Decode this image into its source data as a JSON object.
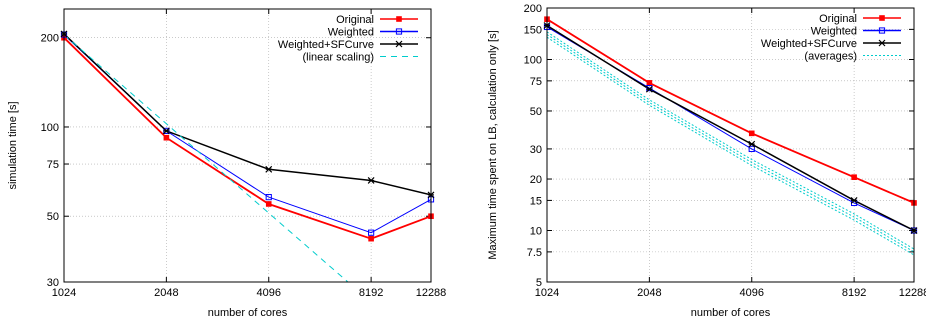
{
  "chart_data": [
    {
      "type": "line",
      "xlabel": "number of cores",
      "ylabel": "simulation time [s]",
      "x_scale": "log2",
      "y_scale": "log",
      "xlim": [
        1024,
        12288
      ],
      "ylim": [
        30,
        250
      ],
      "xticks": [
        1024,
        2048,
        4096,
        8192,
        12288
      ],
      "yticks": [
        30,
        50,
        75,
        100,
        200
      ],
      "grid": true,
      "legend_position": "top-right",
      "series": [
        {
          "name": "Original",
          "color": "#ff0000",
          "marker": "filled-square",
          "style": "solid",
          "x": [
            1024,
            2048,
            4096,
            8192,
            12288
          ],
          "y": [
            200,
            92,
            55,
            42,
            50
          ]
        },
        {
          "name": "Weighted",
          "color": "#0000ff",
          "marker": "open-square",
          "style": "solid",
          "x": [
            1024,
            2048,
            4096,
            8192,
            12288
          ],
          "y": [
            205,
            97,
            58,
            44,
            57
          ]
        },
        {
          "name": "Weighted+SFCurve",
          "color": "#000000",
          "marker": "star",
          "style": "solid",
          "x": [
            1024,
            2048,
            4096,
            8192,
            12288
          ],
          "y": [
            206,
            97,
            72,
            66,
            59
          ]
        },
        {
          "name": "(linear scaling)",
          "color": "#00cccc",
          "marker": "none",
          "style": "dashed",
          "x": [
            1024,
            2048,
            4096,
            7000
          ],
          "y": [
            205,
            102.5,
            51.25,
            30
          ]
        }
      ]
    },
    {
      "type": "line",
      "xlabel": "number of cores",
      "ylabel": "Maximum time spent on LB, calculation only [s]",
      "x_scale": "log2",
      "y_scale": "log",
      "xlim": [
        1024,
        12288
      ],
      "ylim": [
        5,
        200
      ],
      "xticks": [
        1024,
        2048,
        4096,
        8192,
        12288
      ],
      "yticks": [
        5,
        7.5,
        10,
        15,
        20,
        30,
        50,
        75,
        100,
        150,
        200
      ],
      "grid": true,
      "legend_position": "top-right",
      "series": [
        {
          "name": "Original",
          "color": "#ff0000",
          "marker": "filled-square",
          "style": "solid",
          "x": [
            1024,
            2048,
            4096,
            8192,
            12288
          ],
          "y": [
            172,
            73,
            37,
            20.5,
            14.5
          ]
        },
        {
          "name": "Weighted",
          "color": "#0000ff",
          "marker": "open-square",
          "style": "solid",
          "x": [
            1024,
            2048,
            4096,
            8192,
            12288
          ],
          "y": [
            155,
            68,
            30,
            14.5,
            10
          ]
        },
        {
          "name": "Weighted+SFCurve",
          "color": "#000000",
          "marker": "star",
          "style": "solid",
          "x": [
            1024,
            2048,
            4096,
            8192,
            12288
          ],
          "y": [
            158,
            67,
            32,
            15,
            10
          ]
        },
        {
          "name": "(averages)",
          "color": "#00cccc",
          "marker": "none",
          "style": "dotted",
          "x": [
            1024,
            2048,
            4096,
            8192,
            12288
          ],
          "y": [
            140,
            56,
            25,
            12,
            7.5
          ]
        },
        {
          "name": "",
          "color": "#00cccc",
          "marker": "none",
          "style": "dotted",
          "x": [
            1024,
            2048,
            4096,
            8192,
            12288
          ],
          "y": [
            135,
            54,
            24,
            11.5,
            7.2
          ]
        },
        {
          "name": "",
          "color": "#00cccc",
          "marker": "none",
          "style": "dotted",
          "x": [
            1024,
            2048,
            4096,
            8192,
            12288
          ],
          "y": [
            145,
            58,
            26,
            12.5,
            7.8
          ]
        }
      ]
    }
  ]
}
